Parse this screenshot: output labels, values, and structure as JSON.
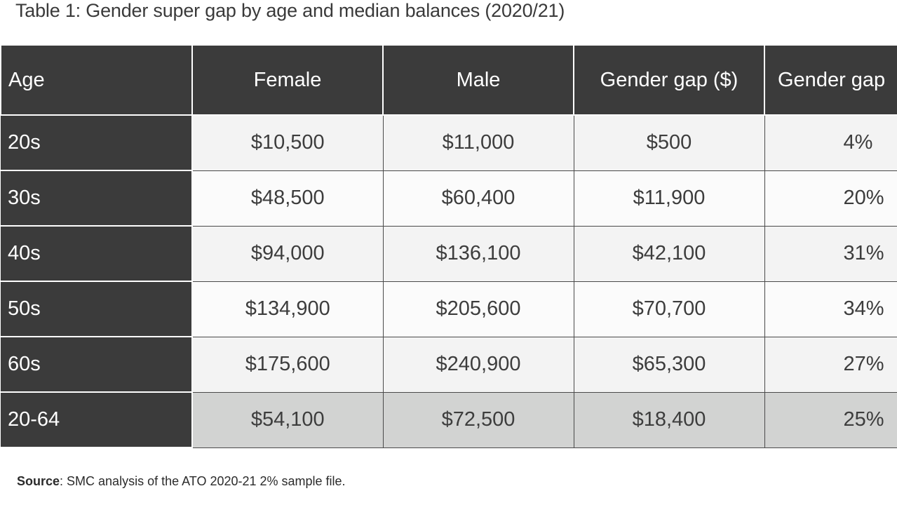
{
  "title": "Table 1: Gender super gap by age and median balances (2020/21)",
  "source": {
    "label": "Source",
    "text": ": SMC analysis of the ATO 2020-21 2% sample file."
  },
  "chart_data": {
    "type": "table",
    "title": "Table 1: Gender super gap by age and median balances (2020/21)",
    "columns": [
      "Age",
      "Female",
      "Male",
      "Gender gap ($)",
      "Gender gap"
    ],
    "rows": [
      [
        "20s",
        "$10,500",
        "$11,000",
        "$500",
        "4%"
      ],
      [
        "30s",
        "$48,500",
        "$60,400",
        "$11,900",
        "20%"
      ],
      [
        "40s",
        "$94,000",
        "$136,100",
        "$42,100",
        "31%"
      ],
      [
        "50s",
        "$134,900",
        "$205,600",
        "$70,700",
        "34%"
      ],
      [
        "60s",
        "$175,600",
        "$240,900",
        "$65,300",
        "27%"
      ],
      [
        "20-64",
        "$54,100",
        "$72,500",
        "$18,400",
        "25%"
      ]
    ]
  }
}
